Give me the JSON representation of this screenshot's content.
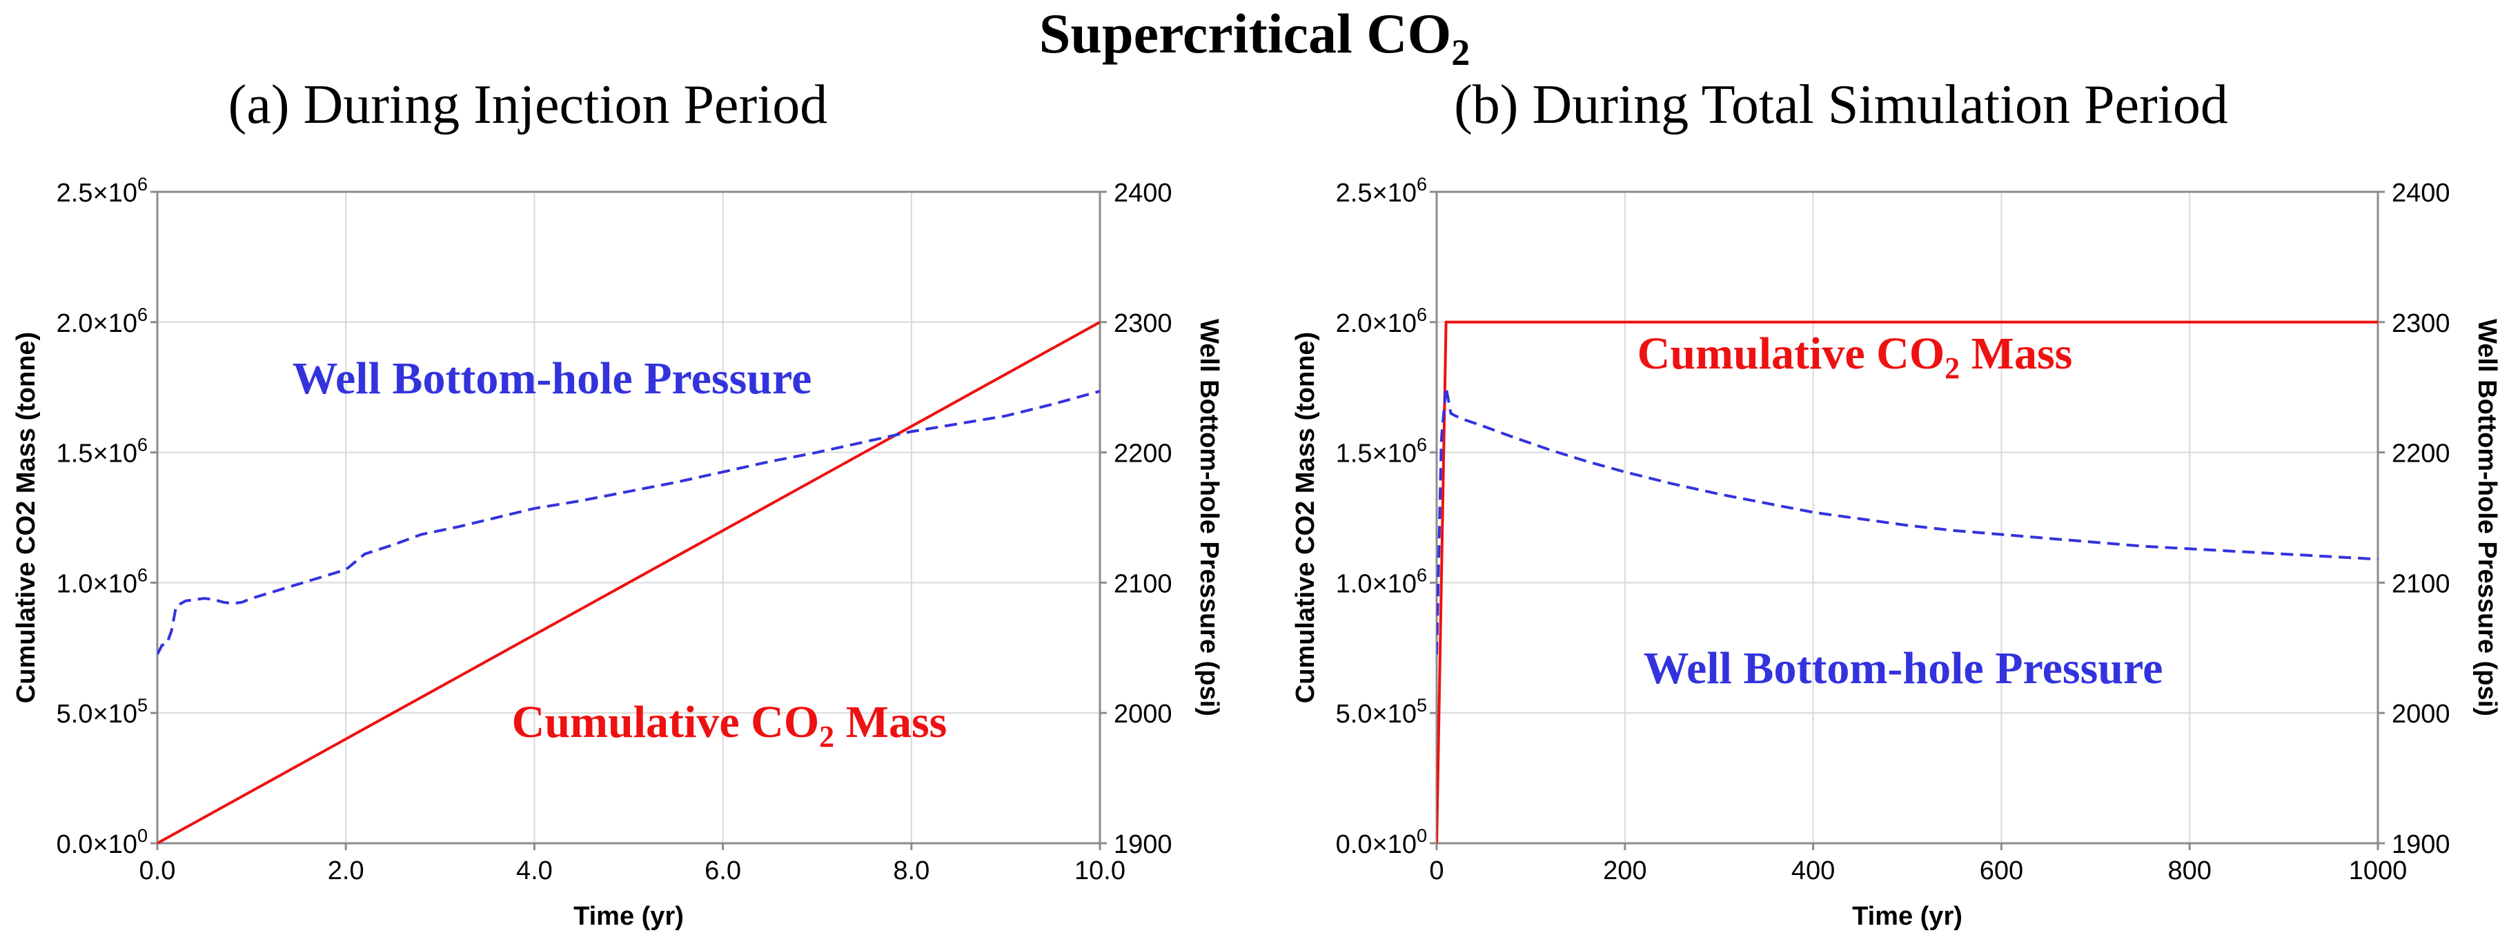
{
  "figure": {
    "title": "Supercritical CO",
    "title_sub": "2"
  },
  "chart_data": [
    {
      "type": "line",
      "subtitle": "(a) During Injection Period",
      "xlabel": "Time (yr)",
      "ylabel_left": "Cumulative CO2 Mass (tonne)",
      "ylabel_right": "Well Bottom-hole Pressure (psi)",
      "xlim": [
        0,
        10
      ],
      "ylim_left": [
        0,
        2500000
      ],
      "ylim_right": [
        1900,
        2400
      ],
      "x_ticks": [
        "0.0",
        "2.0",
        "4.0",
        "6.0",
        "8.0",
        "10.0"
      ],
      "y_left_ticks": [
        {
          "m": "0.0",
          "e": "0"
        },
        {
          "m": "5.0",
          "e": "5"
        },
        {
          "m": "1.0",
          "e": "6"
        },
        {
          "m": "1.5",
          "e": "6"
        },
        {
          "m": "2.0",
          "e": "6"
        },
        {
          "m": "2.5",
          "e": "6"
        }
      ],
      "y_right_ticks": [
        "1900",
        "2000",
        "2100",
        "2200",
        "2300",
        "2400"
      ],
      "annotations": {
        "pressure": {
          "text": "Well Bottom-hole Pressure",
          "color": "#3333dd"
        },
        "mass": {
          "pre": "Cumulative CO",
          "sub": "2",
          "post": " Mass",
          "color": "#ee1111"
        }
      },
      "series": [
        {
          "key": "mass",
          "axis": "left",
          "color": "#ee1111",
          "dash": "solid",
          "x": [
            0,
            10
          ],
          "y": [
            0,
            2000000
          ]
        },
        {
          "key": "pressure",
          "axis": "right",
          "color": "#3333dd",
          "dash": "dashed",
          "x": [
            0,
            0.05,
            0.1,
            0.15,
            0.2,
            0.3,
            0.4,
            0.5,
            0.6,
            0.7,
            0.8,
            0.9,
            1.0,
            1.5,
            2.0,
            2.2,
            2.5,
            2.8,
            3.2,
            3.6,
            4.0,
            4.5,
            5.0,
            5.5,
            6.0,
            6.5,
            7.0,
            7.5,
            8.0,
            8.5,
            9.0,
            9.5,
            10.0
          ],
          "y": [
            2045,
            2052,
            2053,
            2063,
            2082,
            2086,
            2087,
            2088,
            2087,
            2085,
            2084,
            2085,
            2088,
            2099,
            2110,
            2122,
            2129,
            2137,
            2143,
            2150,
            2157,
            2163,
            2170,
            2177,
            2185,
            2193,
            2200,
            2208,
            2216,
            2222,
            2228,
            2237,
            2247
          ]
        }
      ]
    },
    {
      "type": "line",
      "subtitle": "(b) During Total Simulation Period",
      "xlabel": "Time (yr)",
      "ylabel_left": "Cumulative CO2 Mass (tonne)",
      "ylabel_right": "Well Bottom-hole Pressure (psi)",
      "xlim": [
        0,
        1000
      ],
      "ylim_left": [
        0,
        2500000
      ],
      "ylim_right": [
        1900,
        2400
      ],
      "x_ticks": [
        "0",
        "200",
        "400",
        "600",
        "800",
        "1000"
      ],
      "y_left_ticks": [
        {
          "m": "0.0",
          "e": "0"
        },
        {
          "m": "5.0",
          "e": "5"
        },
        {
          "m": "1.0",
          "e": "6"
        },
        {
          "m": "1.5",
          "e": "6"
        },
        {
          "m": "2.0",
          "e": "6"
        },
        {
          "m": "2.5",
          "e": "6"
        }
      ],
      "y_right_ticks": [
        "1900",
        "2000",
        "2100",
        "2200",
        "2300",
        "2400"
      ],
      "annotations": {
        "mass": {
          "pre": "Cumulative CO",
          "sub": "2",
          "post": " Mass",
          "color": "#ee1111"
        },
        "pressure": {
          "text": "Well Bottom-hole Pressure",
          "color": "#3333dd"
        }
      },
      "series": [
        {
          "key": "mass",
          "axis": "left",
          "color": "#ee1111",
          "dash": "solid",
          "x": [
            0,
            10,
            1000
          ],
          "y": [
            0,
            2000000,
            2000000
          ]
        },
        {
          "key": "pressure",
          "axis": "right",
          "color": "#3333dd",
          "dash": "dashed",
          "x": [
            0,
            5,
            10,
            15,
            20,
            30,
            50,
            80,
            120,
            160,
            200,
            250,
            300,
            350,
            400,
            450,
            500,
            550,
            600,
            650,
            700,
            750,
            800,
            850,
            900,
            950,
            1000
          ],
          "y": [
            2045,
            2210,
            2250,
            2230,
            2228,
            2225,
            2220,
            2212,
            2202,
            2193,
            2185,
            2176,
            2168,
            2161,
            2154,
            2149,
            2144,
            2140,
            2137,
            2134,
            2131,
            2128,
            2126,
            2124,
            2122,
            2120,
            2118
          ]
        }
      ]
    }
  ]
}
